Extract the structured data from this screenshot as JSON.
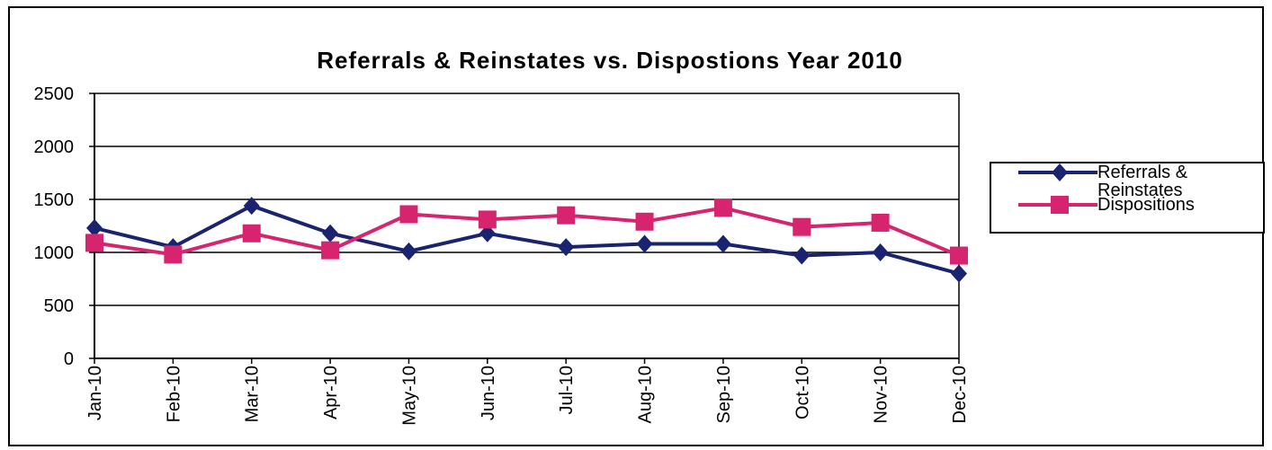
{
  "chart_data": {
    "type": "line",
    "title": "Referrals & Reinstates vs. Dispostions  Year 2010",
    "categories": [
      "Jan-10",
      "Feb-10",
      "Mar-10",
      "Apr-10",
      "May-10",
      "Jun-10",
      "Jul-10",
      "Aug-10",
      "Sep-10",
      "Oct-10",
      "Nov-10",
      "Dec-10"
    ],
    "series": [
      {
        "name": "Referrals & Reinstates",
        "color": "#1a2370",
        "marker": "diamond",
        "values": [
          1230,
          1050,
          1440,
          1180,
          1010,
          1180,
          1050,
          1080,
          1080,
          970,
          1000,
          800
        ]
      },
      {
        "name": "Dispositions",
        "color": "#d6246e",
        "marker": "square",
        "values": [
          1090,
          980,
          1180,
          1020,
          1360,
          1310,
          1350,
          1290,
          1420,
          1240,
          1280,
          970
        ]
      }
    ],
    "ylim": [
      0,
      2500
    ],
    "yticks": [
      0,
      500,
      1000,
      1500,
      2000,
      2500
    ],
    "grid": true,
    "legend": "right"
  }
}
